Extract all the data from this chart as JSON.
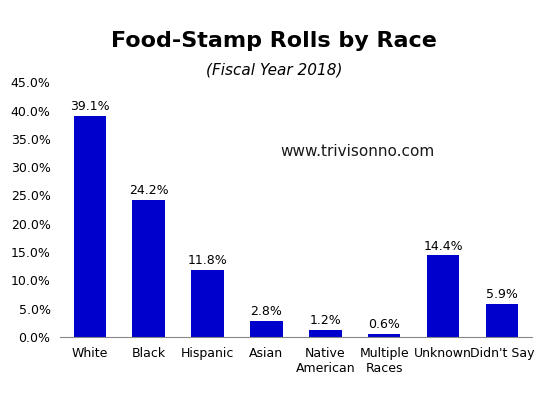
{
  "title": "Food-Stamp Rolls by Race",
  "subtitle": "(Fiscal Year 2018)",
  "watermark": "www.trivisonno.com",
  "categories": [
    "White",
    "Black",
    "Hispanic",
    "Asian",
    "Native\nAmerican",
    "Multiple\nRaces",
    "Unknown",
    "Didn't Say"
  ],
  "values": [
    39.1,
    24.2,
    11.8,
    2.8,
    1.2,
    0.6,
    14.4,
    5.9
  ],
  "bar_color": "#0000CC",
  "ylim": [
    0,
    45
  ],
  "yticks": [
    0,
    5,
    10,
    15,
    20,
    25,
    30,
    35,
    40,
    45
  ],
  "title_fontsize": 16,
  "subtitle_fontsize": 11,
  "label_fontsize": 9,
  "tick_fontsize": 9,
  "watermark_fontsize": 11,
  "background_color": "#FFFFFF"
}
